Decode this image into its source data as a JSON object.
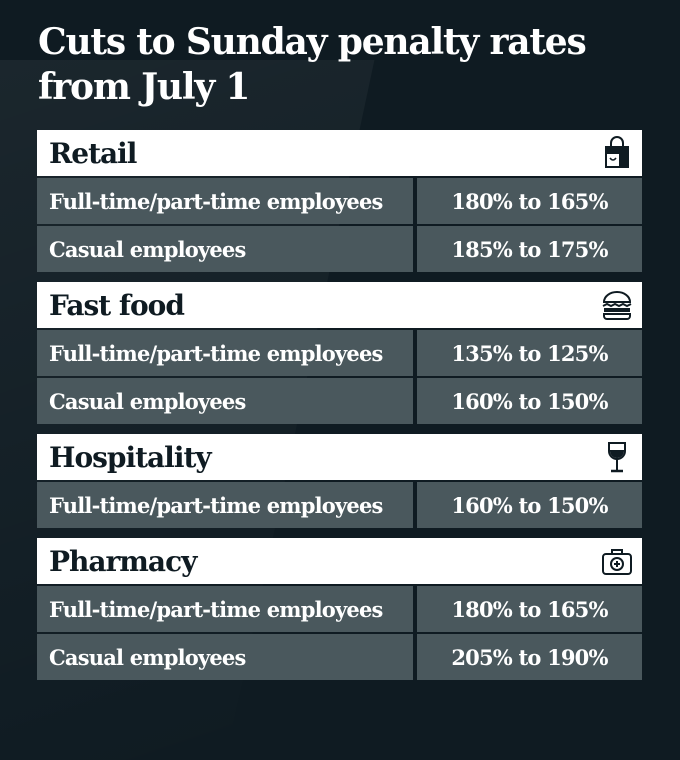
{
  "title": [
    "Cuts to Sunday penalty rates",
    "from July 1"
  ],
  "sections": [
    {
      "name": "Retail",
      "icon": "shopping-bag-icon",
      "rows": [
        {
          "label": "Full-time/part-time employees",
          "value": "180% to 165%"
        },
        {
          "label": "Casual employees",
          "value": "185% to 175%"
        }
      ]
    },
    {
      "name": "Fast food",
      "icon": "burger-icon",
      "rows": [
        {
          "label": "Full-time/part-time employees",
          "value": "135% to 125%"
        },
        {
          "label": "Casual employees",
          "value": "160% to 150%"
        }
      ]
    },
    {
      "name": "Hospitality",
      "icon": "wine-glass-icon",
      "rows": [
        {
          "label": "Full-time/part-time employees",
          "value": "160% to 150%"
        }
      ]
    },
    {
      "name": "Pharmacy",
      "icon": "first-aid-kit-icon",
      "rows": [
        {
          "label": "Full-time/part-time employees",
          "value": "180% to 165%"
        },
        {
          "label": "Casual employees",
          "value": "205% to 190%"
        }
      ]
    }
  ],
  "colors": {
    "background": "#0f1b22",
    "row": "#4a585d",
    "header": "#ffffff"
  }
}
